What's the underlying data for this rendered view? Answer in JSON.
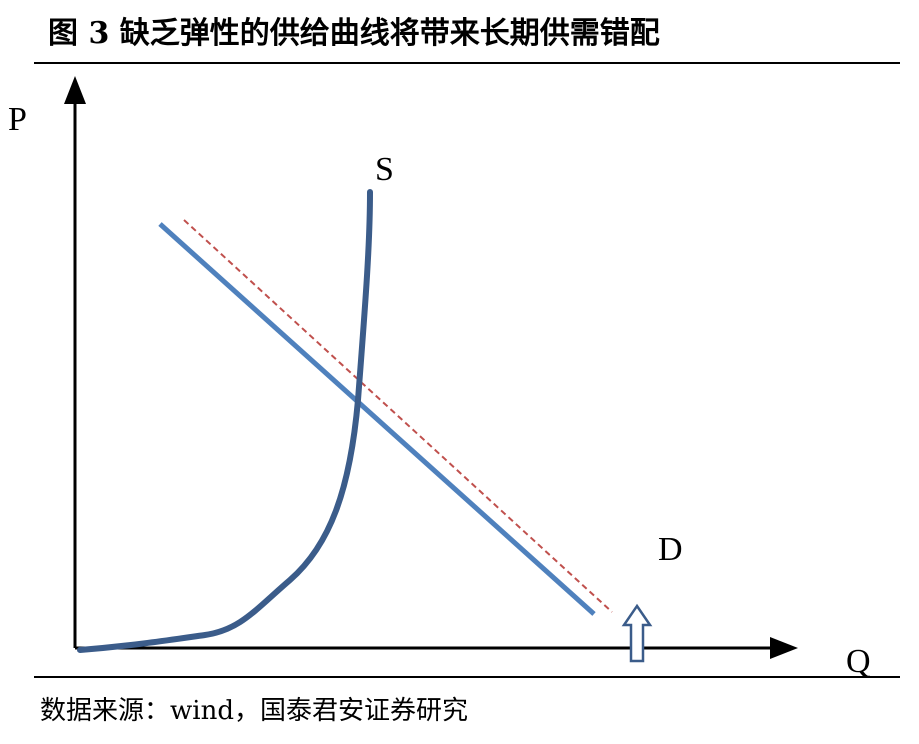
{
  "figure": {
    "title": "图 3  缺乏弹性的供给曲线将带来长期供需错配",
    "source": "数据来源：wind，国泰君安证券研究"
  },
  "diagram": {
    "y_axis_label": "P",
    "x_axis_label": "Q",
    "supply_label": "S",
    "demand_label": "D",
    "colors": {
      "axis": "#000000",
      "supply": "#3b5c8a",
      "demand": "#4f81bd",
      "shifted_demand": "#c0504d",
      "shift_arrow": "#3b5c8a"
    }
  }
}
